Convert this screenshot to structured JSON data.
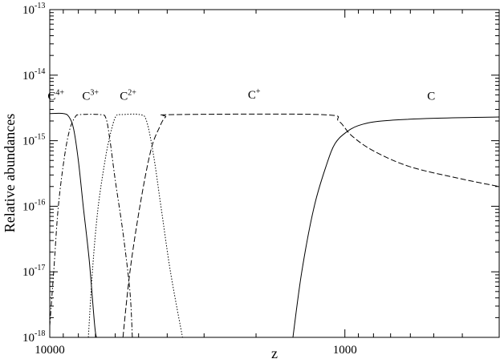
{
  "chart_data": {
    "type": "line",
    "xlabel": "z",
    "ylabel": "Relative abundances",
    "x_scale": "log",
    "x_reversed": true,
    "xlim": [
      10000,
      300
    ],
    "y_scale": "log",
    "ylim": [
      1e-18,
      1e-13
    ],
    "x_ticks": [
      {
        "value": 10000,
        "label": "10000"
      },
      {
        "value": 1000,
        "label": "1000"
      }
    ],
    "y_ticks": [
      {
        "value": 1e-18,
        "base": "10",
        "exp": "-18"
      },
      {
        "value": 1e-17,
        "base": "10",
        "exp": "-17"
      },
      {
        "value": 1e-16,
        "base": "10",
        "exp": "-16"
      },
      {
        "value": 1e-15,
        "base": "10",
        "exp": "-15"
      },
      {
        "value": 1e-14,
        "base": "10",
        "exp": "-14"
      },
      {
        "value": 1e-13,
        "base": "10",
        "exp": "-13"
      }
    ],
    "series": [
      {
        "name": "C4+",
        "label_base": "C",
        "label_sup": "4+",
        "dash": "solid",
        "points": [
          [
            10000,
            2.6e-15
          ],
          [
            8980,
            2.6e-15
          ],
          [
            8600,
            2.3e-15
          ],
          [
            8300,
            1.5e-15
          ],
          [
            8000,
            5e-16
          ],
          [
            7700,
            1e-16
          ],
          [
            7350,
            1.5e-17
          ],
          [
            7050,
            1.6e-18
          ],
          [
            6950,
            1e-18
          ]
        ]
      },
      {
        "name": "C3+",
        "label_base": "C",
        "label_sup": "3+",
        "dash": "dash-dot",
        "points": [
          [
            10000,
            1.5e-18
          ],
          [
            9700,
            1e-17
          ],
          [
            9350,
            1e-16
          ],
          [
            8900,
            6e-16
          ],
          [
            8550,
            1.5e-15
          ],
          [
            8200,
            2.3e-15
          ],
          [
            7900,
            2.5e-15
          ],
          [
            6750,
            2.5e-15
          ],
          [
            6450,
            2.2e-15
          ],
          [
            6250,
            1e-15
          ],
          [
            6000,
            2.5e-16
          ],
          [
            5650,
            4e-17
          ],
          [
            5350,
            5e-18
          ],
          [
            5250,
            1e-18
          ]
        ]
      },
      {
        "name": "C2+",
        "label_base": "C",
        "label_sup": "2+",
        "dash": "dotted",
        "points": [
          [
            7400,
            1e-18
          ],
          [
            7150,
            1.2e-17
          ],
          [
            6850,
            1e-16
          ],
          [
            6450,
            6e-16
          ],
          [
            6150,
            1.6e-15
          ],
          [
            5950,
            2.4e-15
          ],
          [
            5700,
            2.5e-15
          ],
          [
            4950,
            2.5e-15
          ],
          [
            4700,
            2e-15
          ],
          [
            4450,
            6e-16
          ],
          [
            4200,
            1e-16
          ],
          [
            3900,
            1e-17
          ],
          [
            3550,
            1e-18
          ]
        ]
      },
      {
        "name": "C+",
        "label_base": "C",
        "label_sup": "+",
        "dash": "dashed",
        "points": [
          [
            5650,
            1e-18
          ],
          [
            5350,
            1e-17
          ],
          [
            4950,
            1e-16
          ],
          [
            4550,
            7e-16
          ],
          [
            4250,
            1.6e-15
          ],
          [
            4050,
            2.3e-15
          ],
          [
            3800,
            2.5e-15
          ],
          [
            1200,
            2.5e-15
          ],
          [
            1050,
            2e-15
          ],
          [
            950,
            1.2e-15
          ],
          [
            800,
            7e-16
          ],
          [
            600,
            4e-16
          ],
          [
            400,
            2.6e-16
          ],
          [
            300,
            2e-16
          ]
        ]
      },
      {
        "name": "C",
        "label_base": "C",
        "label_sup": "",
        "dash": "solid",
        "points": [
          [
            1500,
            1e-18
          ],
          [
            1400,
            1e-17
          ],
          [
            1270,
            1e-16
          ],
          [
            1150,
            4.5e-16
          ],
          [
            1080,
            9e-16
          ],
          [
            1000,
            1.3e-15
          ],
          [
            900,
            1.7e-15
          ],
          [
            750,
            2e-15
          ],
          [
            500,
            2.2e-15
          ],
          [
            300,
            2.3e-15
          ]
        ]
      }
    ]
  }
}
